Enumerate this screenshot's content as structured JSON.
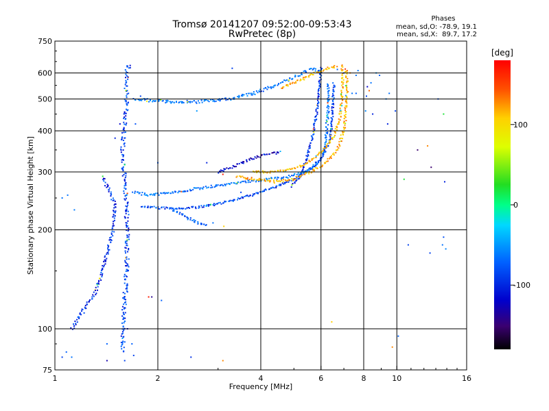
{
  "chart_data": {
    "type": "scatter",
    "title": "Tromsø 20141207 09:52:00-09:53:43",
    "subtitle": "RwPretec (8p)",
    "xlabel": "Frequency [MHz]",
    "ylabel": "Stationary phase Virtual Height [km]",
    "x_scale": "log",
    "y_scale": "log",
    "xlim": [
      1,
      16
    ],
    "ylim": [
      75,
      750
    ],
    "grid": true,
    "x_gridlines": [
      2,
      4,
      6,
      8,
      10
    ],
    "y_gridlines": [
      100,
      200,
      300,
      400,
      500,
      600
    ],
    "x_ticks": [
      {
        "v": 1,
        "label": "1"
      },
      {
        "v": 2,
        "label": "2"
      },
      {
        "v": 4,
        "label": "4"
      },
      {
        "v": 6,
        "label": "6"
      },
      {
        "v": 8,
        "label": "8"
      },
      {
        "v": 10,
        "label": "10"
      },
      {
        "v": 16,
        "label": "16"
      }
    ],
    "y_ticks": [
      {
        "v": 75,
        "label": "75"
      },
      {
        "v": 100,
        "label": "100"
      },
      {
        "v": 200,
        "label": "200"
      },
      {
        "v": 300,
        "label": "300"
      },
      {
        "v": 400,
        "label": "400"
      },
      {
        "v": 500,
        "label": "500"
      },
      {
        "v": 600,
        "label": "600"
      },
      {
        "v": 750,
        "label": "750"
      }
    ],
    "legend_text": {
      "heading": "Phases",
      "line_o": "mean, sd,O: -78.9, 19.1",
      "line_x": "mean, sd,X:  89.7, 17.2"
    },
    "colorbar": {
      "label": "[deg]",
      "range": [
        -180,
        180
      ],
      "ticks": [
        {
          "v": 100,
          "label": "100"
        },
        {
          "v": 0,
          "label": "0"
        },
        {
          "v": -100,
          "label": "-100"
        }
      ]
    },
    "traces": [
      {
        "name": "vertical-column",
        "phase": -100,
        "spread": 2.0,
        "pts": [
          [
            1.58,
            85
          ],
          [
            1.58,
            100
          ],
          [
            1.6,
            120
          ],
          [
            1.62,
            150
          ],
          [
            1.63,
            190
          ],
          [
            1.62,
            230
          ],
          [
            1.6,
            280
          ],
          [
            1.58,
            350
          ],
          [
            1.6,
            420
          ],
          [
            1.62,
            500
          ],
          [
            1.62,
            600
          ],
          [
            1.65,
            640
          ]
        ]
      },
      {
        "name": "low-oblique",
        "phase": -105,
        "spread": 1.5,
        "pts": [
          [
            1.12,
            100
          ],
          [
            1.22,
            115
          ],
          [
            1.32,
            130
          ],
          [
            1.4,
            160
          ],
          [
            1.48,
            200
          ],
          [
            1.5,
            240
          ],
          [
            1.45,
            260
          ],
          [
            1.38,
            290
          ]
        ]
      },
      {
        "name": "upper-o",
        "phase": -80,
        "spread": 1.4,
        "pts": [
          [
            1.7,
            500
          ],
          [
            1.9,
            495
          ],
          [
            2.2,
            490
          ],
          [
            2.6,
            490
          ],
          [
            3.0,
            495
          ],
          [
            3.4,
            505
          ],
          [
            3.8,
            520
          ],
          [
            4.2,
            540
          ],
          [
            4.8,
            570
          ],
          [
            5.3,
            600
          ],
          [
            5.7,
            620
          ],
          [
            6.0,
            600
          ]
        ]
      },
      {
        "name": "upper-o-cusp",
        "phase": -105,
        "spread": 1.0,
        "pts": [
          [
            6.0,
            620
          ],
          [
            5.95,
            560
          ],
          [
            5.9,
            500
          ],
          [
            5.8,
            440
          ],
          [
            5.65,
            380
          ],
          [
            5.45,
            330
          ],
          [
            5.2,
            290
          ],
          [
            4.9,
            270
          ]
        ]
      },
      {
        "name": "lower-o-a",
        "phase": -80,
        "spread": 1.2,
        "pts": [
          [
            1.7,
            260
          ],
          [
            1.9,
            255
          ],
          [
            2.2,
            260
          ],
          [
            2.5,
            265
          ],
          [
            2.8,
            270
          ],
          [
            3.2,
            275
          ],
          [
            3.6,
            280
          ],
          [
            4.2,
            285
          ],
          [
            4.8,
            290
          ],
          [
            5.4,
            300
          ],
          [
            5.9,
            320
          ],
          [
            6.1,
            340
          ],
          [
            6.2,
            370
          ],
          [
            6.25,
            420
          ],
          [
            6.3,
            480
          ],
          [
            6.3,
            560
          ]
        ]
      },
      {
        "name": "lower-o-b",
        "phase": -95,
        "spread": 1.0,
        "pts": [
          [
            1.8,
            235
          ],
          [
            2.2,
            232
          ],
          [
            2.6,
            234
          ],
          [
            3.0,
            240
          ],
          [
            3.4,
            248
          ],
          [
            3.9,
            258
          ],
          [
            4.5,
            272
          ],
          [
            5.1,
            288
          ],
          [
            5.6,
            305
          ],
          [
            6.0,
            330
          ],
          [
            6.35,
            370
          ],
          [
            6.45,
            420
          ],
          [
            6.5,
            480
          ],
          [
            6.55,
            560
          ]
        ]
      },
      {
        "name": "x-trace",
        "phase": 120,
        "spread": 1.2,
        "pts": [
          [
            3.4,
            290
          ],
          [
            3.9,
            285
          ],
          [
            4.4,
            280
          ],
          [
            5.0,
            285
          ],
          [
            5.6,
            300
          ],
          [
            6.2,
            320
          ],
          [
            6.7,
            350
          ],
          [
            7.0,
            400
          ],
          [
            7.1,
            470
          ],
          [
            7.15,
            540
          ],
          [
            7.1,
            620
          ]
        ]
      },
      {
        "name": "x-trace-2",
        "phase": 115,
        "spread": 1.0,
        "pts": [
          [
            3.8,
            300
          ],
          [
            4.3,
            300
          ],
          [
            4.9,
            305
          ],
          [
            5.5,
            320
          ],
          [
            6.0,
            345
          ],
          [
            6.5,
            380
          ],
          [
            6.8,
            430
          ],
          [
            6.9,
            500
          ],
          [
            6.95,
            580
          ],
          [
            6.9,
            640
          ]
        ]
      },
      {
        "name": "upper-x",
        "phase": 115,
        "spread": 1.0,
        "pts": [
          [
            4.6,
            540
          ],
          [
            5.0,
            560
          ],
          [
            5.4,
            580
          ],
          [
            5.8,
            600
          ],
          [
            6.3,
            620
          ],
          [
            6.7,
            630
          ]
        ]
      },
      {
        "name": "oblique-dark",
        "phase": -125,
        "spread": 1.2,
        "pts": [
          [
            3.0,
            300
          ],
          [
            3.4,
            315
          ],
          [
            3.8,
            330
          ],
          [
            4.2,
            340
          ],
          [
            4.6,
            345
          ]
        ]
      },
      {
        "name": "tail",
        "phase": -90,
        "spread": 1.2,
        "pts": [
          [
            2.2,
            230
          ],
          [
            2.4,
            220
          ],
          [
            2.6,
            210
          ],
          [
            2.8,
            205
          ]
        ]
      }
    ],
    "scatter": [
      [
        1.05,
        250,
        -80
      ],
      [
        1.09,
        255,
        -80
      ],
      [
        1.14,
        230,
        -75
      ],
      [
        1.08,
        85,
        -90
      ],
      [
        1.05,
        82,
        -100
      ],
      [
        1.12,
        82,
        -80
      ],
      [
        1.42,
        80,
        -130
      ],
      [
        1.42,
        90,
        -90
      ],
      [
        1.6,
        80,
        -100
      ],
      [
        1.68,
        90,
        -90
      ],
      [
        1.7,
        83,
        -100
      ],
      [
        1.63,
        100,
        -120
      ],
      [
        1.88,
        125,
        170
      ],
      [
        1.92,
        125,
        -140
      ],
      [
        2.05,
        122,
        -90
      ],
      [
        2.5,
        82,
        -105
      ],
      [
        2.6,
        460,
        -60
      ],
      [
        2.9,
        210,
        -80
      ],
      [
        3.1,
        80,
        130
      ],
      [
        3.12,
        205,
        110
      ],
      [
        3.05,
        300,
        -130
      ],
      [
        3.1,
        295,
        170
      ],
      [
        2.78,
        320,
        -110
      ],
      [
        3.5,
        260,
        -100
      ],
      [
        6.45,
        105,
        110
      ],
      [
        7.6,
        590,
        -80
      ],
      [
        7.7,
        610,
        -80
      ],
      [
        8.1,
        460,
        -70
      ],
      [
        8.4,
        560,
        -80
      ],
      [
        8.3,
        530,
        140
      ],
      [
        8.7,
        600,
        -60
      ],
      [
        8.9,
        590,
        -90
      ],
      [
        8.5,
        450,
        -110
      ],
      [
        9.3,
        500,
        -70
      ],
      [
        9.5,
        520,
        -80
      ],
      [
        9.9,
        460,
        -100
      ],
      [
        9.4,
        420,
        -110
      ],
      [
        9.7,
        88,
        130
      ],
      [
        10.1,
        95,
        -90
      ],
      [
        10.5,
        285,
        20
      ],
      [
        10.8,
        180,
        -100
      ],
      [
        11.5,
        350,
        -150
      ],
      [
        12.3,
        360,
        130
      ],
      [
        12.6,
        310,
        -150
      ],
      [
        12.5,
        170,
        -100
      ],
      [
        13.6,
        180,
        -80
      ],
      [
        13.7,
        190,
        -95
      ],
      [
        13.9,
        175,
        -70
      ],
      [
        13.7,
        450,
        20
      ],
      [
        13.8,
        280,
        -110
      ],
      [
        13.2,
        500,
        -95
      ],
      [
        5.9,
        610,
        -100
      ],
      [
        6.7,
        615,
        -90
      ],
      [
        7.0,
        600,
        -100
      ],
      [
        7.3,
        600,
        130
      ],
      [
        7.4,
        520,
        -80
      ],
      [
        7.6,
        520,
        -90
      ],
      [
        8.15,
        510,
        -100
      ],
      [
        8.2,
        545,
        -120
      ],
      [
        3.3,
        620,
        -100
      ],
      [
        1.5,
        380,
        -110
      ],
      [
        1.55,
        420,
        -120
      ],
      [
        1.72,
        420,
        -95
      ],
      [
        1.78,
        510,
        -100
      ],
      [
        2.0,
        320,
        -90
      ]
    ]
  }
}
